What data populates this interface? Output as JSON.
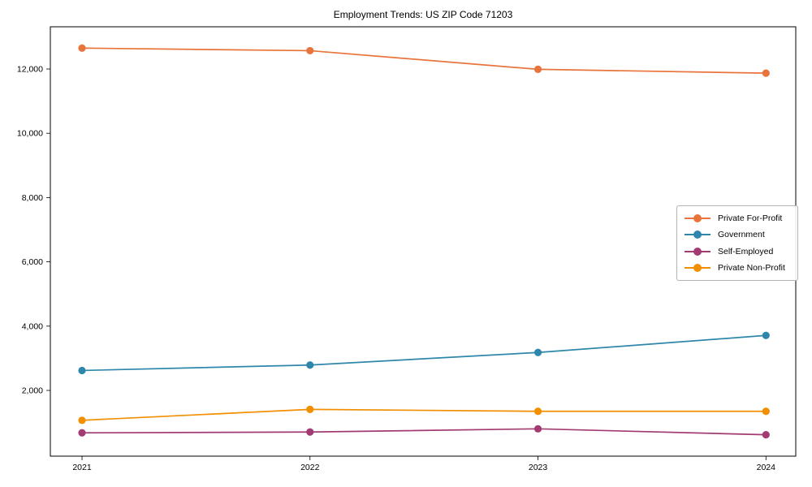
{
  "title": "Employment Trends: US ZIP Code 71203",
  "chart_data": {
    "type": "line",
    "categories": [
      "2021",
      "2022",
      "2023",
      "2024"
    ],
    "series": [
      {
        "name": "Private For-Profit",
        "color": "#E8743B",
        "values": [
          12650,
          12570,
          11990,
          11870
        ]
      },
      {
        "name": "Government",
        "color": "#2E86AB",
        "values": [
          2620,
          2790,
          3180,
          3710
        ]
      },
      {
        "name": "Self-Employed",
        "color": "#A23B72",
        "values": [
          680,
          705,
          805,
          620
        ]
      },
      {
        "name": "Private Non-Profit",
        "color": "#F18F01",
        "values": [
          1070,
          1410,
          1350,
          1350
        ]
      }
    ],
    "title": "Employment Trends: US ZIP Code 71203",
    "xlabel": "",
    "ylabel": "",
    "ylim": [
      -45,
      13312
    ],
    "y_ticks": [
      2000,
      4000,
      6000,
      8000,
      10000,
      12000
    ],
    "y_tick_labels": [
      "2,000",
      "4,000",
      "6,000",
      "8,000",
      "10,000",
      "12,000"
    ],
    "grid": false,
    "legend_position": "center right",
    "marker": "circle",
    "axis_color": "#000000"
  }
}
